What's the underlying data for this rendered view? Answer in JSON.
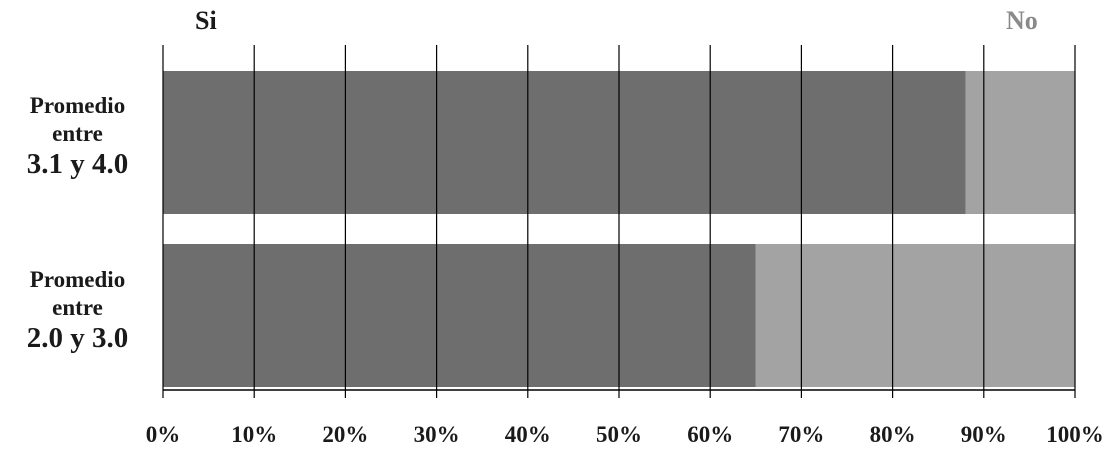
{
  "chart_data": {
    "type": "bar",
    "orientation": "horizontal",
    "stacked": true,
    "percent_scale": true,
    "categories": [
      {
        "lines": [
          "Promedio",
          "entre",
          "3.1 y 4.0"
        ]
      },
      {
        "lines": [
          "Promedio",
          "entre",
          "2.0 y 3.0"
        ]
      }
    ],
    "series": [
      {
        "name": "Si",
        "values": [
          88,
          65
        ],
        "color": "#6e6e6e"
      },
      {
        "name": "No",
        "values": [
          12,
          35
        ],
        "color": "#a3a3a3"
      }
    ],
    "xlim": [
      0,
      100
    ],
    "x_ticks": [
      "0%",
      "10%",
      "20%",
      "30%",
      "40%",
      "50%",
      "60%",
      "70%",
      "80%",
      "90%",
      "100%"
    ],
    "legend_position": "top",
    "grid": "vertical"
  }
}
